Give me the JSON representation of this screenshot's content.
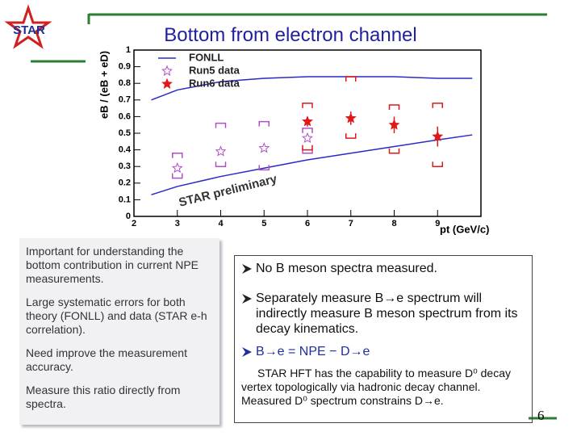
{
  "logo_text": "STAR",
  "title": "Bottom from electron channel",
  "chart_data": {
    "type": "scatter",
    "y_label": "eB / (eB + eD)",
    "x_label": "pt (GeV/c)",
    "annotation": "STAR preliminary",
    "xlim": [
      2,
      10
    ],
    "xticks": [
      2,
      3,
      4,
      5,
      6,
      7,
      8,
      9
    ],
    "ylim": [
      0,
      1
    ],
    "yticks": [
      0,
      0.1,
      0.2,
      0.3,
      0.4,
      0.5,
      0.6,
      0.7,
      0.8,
      0.9,
      1
    ],
    "series": [
      {
        "name": "FONLL",
        "color": "#2a2ac8",
        "x": [
          2.4,
          3,
          4,
          5,
          6,
          7,
          8,
          9,
          9.8
        ],
        "upper": [
          0.7,
          0.76,
          0.81,
          0.83,
          0.84,
          0.84,
          0.84,
          0.83,
          0.83
        ],
        "lower": [
          0.13,
          0.18,
          0.24,
          0.29,
          0.34,
          0.38,
          0.42,
          0.46,
          0.49
        ]
      },
      {
        "name": "Run5 data",
        "color": "#b050c8",
        "x": [
          3,
          4,
          5,
          6
        ],
        "values": [
          0.29,
          0.39,
          0.41,
          0.47
        ],
        "sys_low": [
          0.23,
          0.3,
          0.28,
          0.38
        ],
        "sys_high": [
          0.38,
          0.56,
          0.57,
          0.53
        ]
      },
      {
        "name": "Run6 data",
        "color": "#e01818",
        "x": [
          6,
          7,
          8,
          9
        ],
        "values": [
          0.57,
          0.59,
          0.55,
          0.48
        ],
        "errors": [
          0.03,
          0.04,
          0.05,
          0.06
        ],
        "sys_low": [
          0.4,
          0.47,
          0.38,
          0.3
        ],
        "sys_high": [
          0.68,
          0.84,
          0.67,
          0.68
        ]
      }
    ]
  },
  "left_box": {
    "paragraphs": [
      "Important for understanding the bottom contribution in current NPE measurements.",
      "Large systematic errors for both theory (FONLL) and data (STAR e-h correlation).",
      "Need improve the measurement accuracy.",
      "Measure this ratio directly from spectra."
    ]
  },
  "right_box": {
    "bullets": [
      "No B meson spectra measured.",
      "Separately measure B→e spectrum will indirectly measure B meson spectrum from its decay kinematics.",
      "B→e = NPE − D→e"
    ],
    "note": "STAR HFT has the capability to measure D⁰ decay vertex topologically via hadronic decay channel. Measured D⁰ spectrum constrains D→e."
  },
  "page_number": "6"
}
